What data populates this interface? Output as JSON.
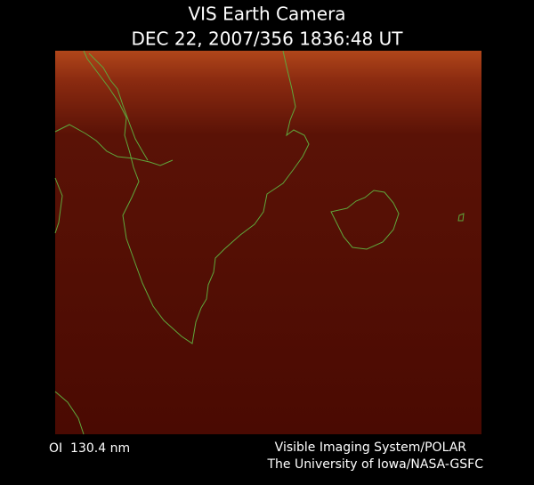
{
  "header": {
    "title": "VIS Earth Camera",
    "timestamp": "DEC 22, 2007/356 1836:48 UT"
  },
  "footer": {
    "filter": "OI  130.4 nm",
    "instrument": "Visible Imaging System/POLAR",
    "credit": "The University of Iowa/NASA-GSFC"
  }
}
